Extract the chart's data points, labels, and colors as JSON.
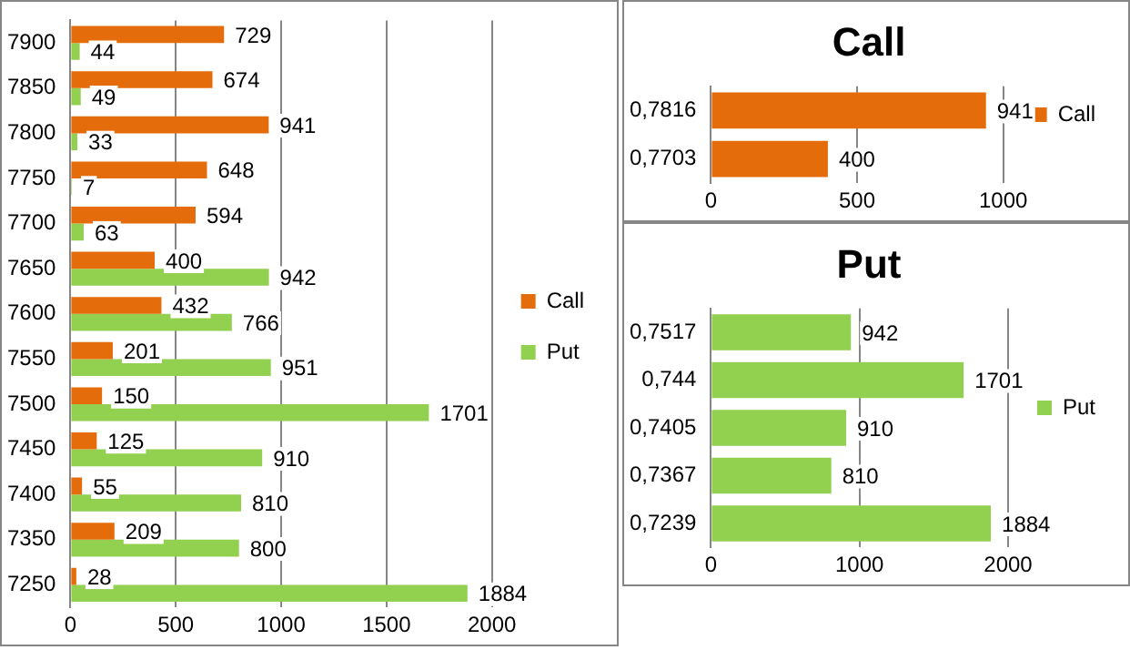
{
  "chart_data": [
    {
      "type": "bar",
      "orientation": "horizontal",
      "categories": [
        "7900",
        "7850",
        "7800",
        "7750",
        "7700",
        "7650",
        "7600",
        "7550",
        "7500",
        "7450",
        "7400",
        "7350",
        "7250"
      ],
      "series": [
        {
          "name": "Call",
          "color": "#e46c0a",
          "values": [
            729,
            674,
            941,
            648,
            594,
            400,
            432,
            201,
            150,
            125,
            55,
            209,
            28
          ]
        },
        {
          "name": "Put",
          "color": "#92d050",
          "values": [
            44,
            49,
            33,
            7,
            63,
            942,
            766,
            951,
            1701,
            910,
            810,
            800,
            1884
          ]
        }
      ],
      "xlim": [
        0,
        2000
      ],
      "xticks": [
        0,
        500,
        1000,
        1500,
        2000
      ],
      "grid": "x",
      "legend": "right",
      "data_labels": true
    },
    {
      "type": "bar",
      "orientation": "horizontal",
      "title": "Call",
      "categories": [
        "0,7816",
        "0,7703"
      ],
      "series": [
        {
          "name": "Call",
          "color": "#e46c0a",
          "values": [
            941,
            400
          ]
        }
      ],
      "xlim": [
        0,
        1000
      ],
      "xticks": [
        0,
        500,
        1000
      ],
      "grid": "x",
      "legend": "right",
      "data_labels": true
    },
    {
      "type": "bar",
      "orientation": "horizontal",
      "title": "Put",
      "categories": [
        "0,7517",
        "0,744",
        "0,7405",
        "0,7367",
        "0,7239"
      ],
      "series": [
        {
          "name": "Put",
          "color": "#92d050",
          "values": [
            942,
            1701,
            910,
            810,
            1884
          ]
        }
      ],
      "xlim": [
        0,
        2000
      ],
      "xticks": [
        0,
        1000,
        2000
      ],
      "grid": "x",
      "legend": "right",
      "data_labels": true
    }
  ]
}
